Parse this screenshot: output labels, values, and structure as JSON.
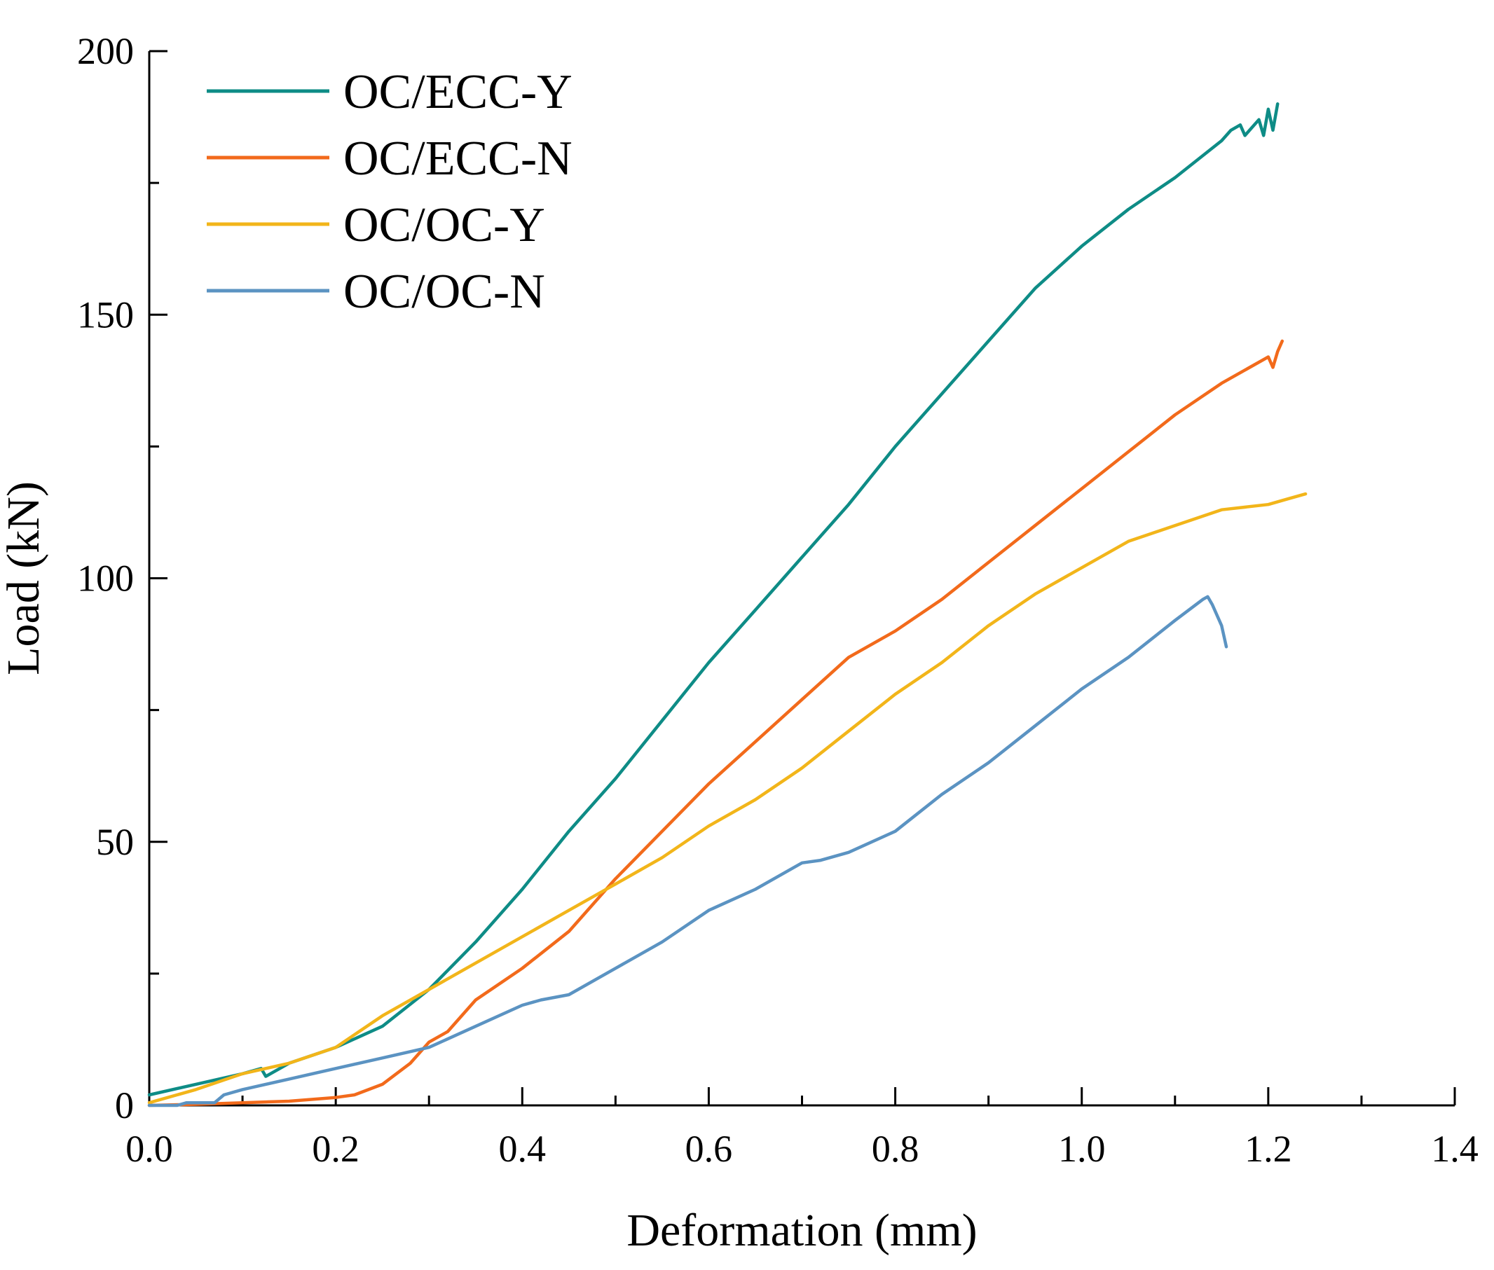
{
  "chart_data": {
    "type": "line",
    "xlabel": "Deformation (mm)",
    "ylabel": "Load (kN)",
    "xlim": [
      0,
      1.4
    ],
    "ylim": [
      0,
      200
    ],
    "x_ticks": [
      "0.0",
      "0.2",
      "0.4",
      "0.6",
      "0.8",
      "1.0",
      "1.2",
      "1.4"
    ],
    "y_ticks": [
      "0",
      "50",
      "100",
      "150",
      "200"
    ],
    "grid": false,
    "legend_position": "top-left",
    "series": [
      {
        "name": "OC/ECC-Y",
        "color": "#0e8c86",
        "x": [
          0.0,
          0.05,
          0.1,
          0.12,
          0.125,
          0.13,
          0.15,
          0.2,
          0.25,
          0.3,
          0.35,
          0.4,
          0.45,
          0.5,
          0.55,
          0.6,
          0.65,
          0.7,
          0.75,
          0.8,
          0.85,
          0.9,
          0.95,
          1.0,
          1.05,
          1.1,
          1.15,
          1.16,
          1.17,
          1.175,
          1.18,
          1.19,
          1.195,
          1.2,
          1.205,
          1.21
        ],
        "y": [
          2,
          4,
          6,
          7,
          5.5,
          6,
          8,
          11,
          15,
          22,
          31,
          41,
          52,
          62,
          73,
          84,
          94,
          104,
          114,
          125,
          135,
          145,
          155,
          163,
          170,
          176,
          183,
          185,
          186,
          184,
          185,
          187,
          184,
          189,
          185,
          190
        ]
      },
      {
        "name": "OC/ECC-N",
        "color": "#f26a1b",
        "x": [
          0.0,
          0.05,
          0.1,
          0.15,
          0.2,
          0.22,
          0.25,
          0.28,
          0.3,
          0.32,
          0.35,
          0.4,
          0.45,
          0.5,
          0.55,
          0.6,
          0.65,
          0.7,
          0.75,
          0.8,
          0.85,
          0.9,
          0.95,
          1.0,
          1.05,
          1.1,
          1.15,
          1.2,
          1.205,
          1.21,
          1.215
        ],
        "y": [
          0,
          0.2,
          0.5,
          0.8,
          1.5,
          2,
          4,
          8,
          12,
          14,
          20,
          26,
          33,
          43,
          52,
          61,
          69,
          77,
          85,
          90,
          96,
          103,
          110,
          117,
          124,
          131,
          137,
          142,
          140,
          143,
          145
        ]
      },
      {
        "name": "OC/OC-Y",
        "color": "#f2b51a",
        "x": [
          0.0,
          0.05,
          0.1,
          0.15,
          0.2,
          0.25,
          0.3,
          0.35,
          0.4,
          0.45,
          0.5,
          0.55,
          0.6,
          0.65,
          0.7,
          0.75,
          0.8,
          0.85,
          0.9,
          0.95,
          1.0,
          1.05,
          1.1,
          1.15,
          1.2,
          1.22,
          1.24
        ],
        "y": [
          0.5,
          3,
          6,
          8,
          11,
          17,
          22,
          27,
          32,
          37,
          42,
          47,
          53,
          58,
          64,
          71,
          78,
          84,
          91,
          97,
          102,
          107,
          110,
          113,
          114,
          115,
          116
        ]
      },
      {
        "name": "OC/OC-N",
        "color": "#5b93c2",
        "x": [
          0.0,
          0.03,
          0.04,
          0.07,
          0.08,
          0.1,
          0.15,
          0.2,
          0.25,
          0.3,
          0.35,
          0.4,
          0.42,
          0.45,
          0.5,
          0.55,
          0.6,
          0.65,
          0.7,
          0.72,
          0.75,
          0.8,
          0.85,
          0.9,
          0.95,
          1.0,
          1.05,
          1.1,
          1.13,
          1.135,
          1.14,
          1.15,
          1.155
        ],
        "y": [
          0,
          0,
          0.5,
          0.5,
          2,
          3,
          5,
          7,
          9,
          11,
          15,
          19,
          20,
          21,
          26,
          31,
          37,
          41,
          46,
          46.5,
          48,
          52,
          59,
          65,
          72,
          79,
          85,
          92,
          96,
          96.5,
          95,
          91,
          87
        ]
      }
    ]
  }
}
